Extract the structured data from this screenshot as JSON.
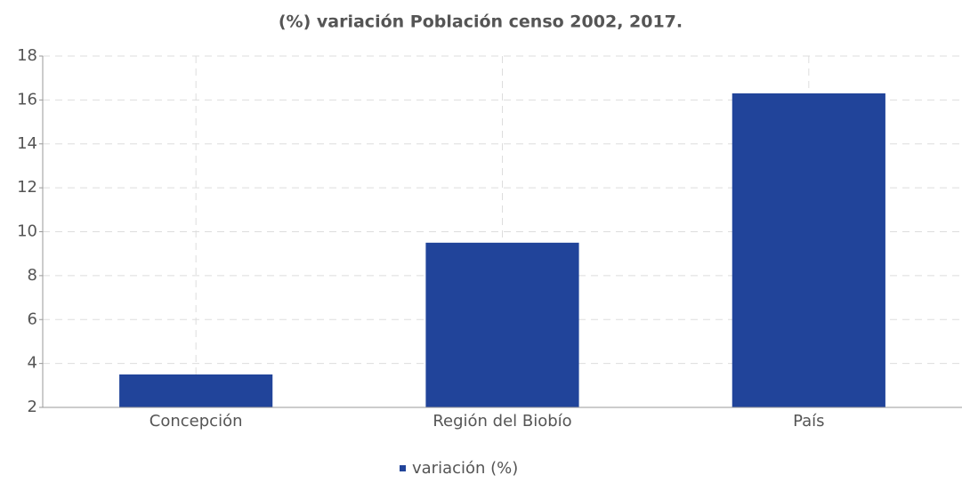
{
  "chart_data": {
    "type": "bar",
    "title": "(%) variación Población censo 2002, 2017.",
    "categories": [
      "Concepción",
      "Región del Biobío",
      "País"
    ],
    "series": [
      {
        "name": "variación (%)",
        "color": "#21449a",
        "values": [
          3.5,
          9.5,
          16.3
        ]
      }
    ],
    "ylim": [
      2,
      18
    ],
    "yticks": [
      2,
      4,
      6,
      8,
      10,
      12,
      14,
      16,
      18
    ],
    "grid": true,
    "legend": "bottom"
  }
}
